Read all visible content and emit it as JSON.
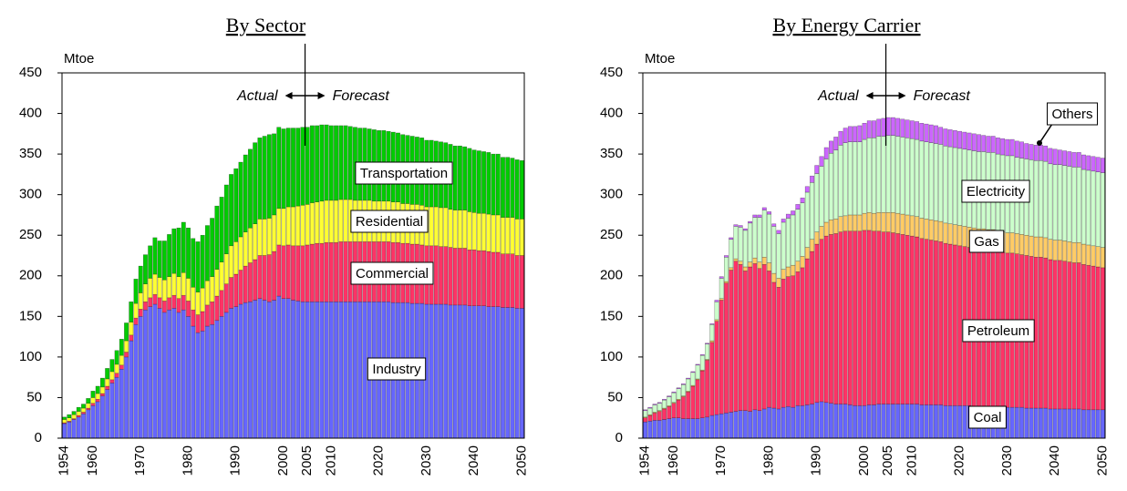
{
  "chart_data": [
    {
      "type": "stacked_bar",
      "title": "By Sector",
      "y_label": "Mtoe",
      "annotations": [
        "Actual",
        "Forecast"
      ],
      "categories": [
        "1954",
        null,
        null,
        null,
        null,
        null,
        "1960",
        null,
        null,
        null,
        null,
        null,
        null,
        null,
        null,
        null,
        "1970",
        null,
        null,
        null,
        null,
        null,
        null,
        null,
        null,
        null,
        "1980",
        null,
        null,
        null,
        null,
        null,
        null,
        null,
        null,
        null,
        "1990",
        null,
        null,
        null,
        null,
        null,
        null,
        null,
        null,
        null,
        "2000",
        null,
        null,
        null,
        null,
        "2005",
        null,
        null,
        null,
        null,
        "2010",
        null,
        null,
        null,
        null,
        null,
        null,
        null,
        null,
        null,
        "2020",
        null,
        null,
        null,
        null,
        null,
        null,
        null,
        null,
        null,
        "2030",
        null,
        null,
        null,
        null,
        null,
        null,
        null,
        null,
        null,
        "2040",
        null,
        null,
        null,
        null,
        null,
        null,
        null,
        null,
        null,
        "2050"
      ],
      "ylim": [
        0,
        450
      ],
      "yticks": [
        0,
        50,
        100,
        150,
        200,
        250,
        300,
        350,
        400,
        450
      ],
      "series": [
        {
          "name": "Industry",
          "color": "#6666ff",
          "values": [
            18,
            20,
            23,
            26,
            30,
            35,
            40,
            45,
            52,
            60,
            68,
            75,
            85,
            100,
            120,
            140,
            150,
            158,
            162,
            165,
            160,
            155,
            158,
            160,
            155,
            158,
            150,
            138,
            130,
            132,
            138,
            140,
            145,
            150,
            155,
            160,
            162,
            165,
            167,
            168,
            170,
            172,
            170,
            168,
            170,
            175,
            172,
            172,
            170,
            169,
            168,
            168,
            168,
            168,
            168,
            168,
            168,
            168,
            168,
            168,
            168,
            168,
            168,
            168,
            168,
            168,
            168,
            168,
            168,
            167,
            167,
            167,
            167,
            166,
            166,
            166,
            165,
            165,
            165,
            165,
            165,
            164,
            164,
            164,
            164,
            163,
            163,
            163,
            163,
            162,
            162,
            162,
            161,
            161,
            161,
            160,
            160
          ]
        },
        {
          "name": "Commercial",
          "color": "#ff3366",
          "values": [
            1,
            1,
            1,
            2,
            2,
            2,
            3,
            3,
            3,
            4,
            4,
            5,
            5,
            6,
            7,
            8,
            9,
            10,
            11,
            12,
            13,
            14,
            15,
            16,
            17,
            18,
            19,
            20,
            22,
            24,
            26,
            28,
            30,
            32,
            35,
            38,
            40,
            42,
            45,
            48,
            50,
            53,
            55,
            58,
            60,
            63,
            65,
            66,
            67,
            68,
            69,
            70,
            71,
            72,
            72,
            73,
            73,
            73,
            74,
            74,
            74,
            74,
            74,
            74,
            74,
            74,
            74,
            74,
            74,
            74,
            74,
            73,
            73,
            73,
            73,
            72,
            72,
            72,
            72,
            71,
            71,
            71,
            70,
            70,
            70,
            69,
            69,
            68,
            68,
            68,
            67,
            67,
            66,
            66,
            66,
            65,
            65
          ]
        },
        {
          "name": "Residential",
          "color": "#ffff33",
          "values": [
            4,
            4,
            5,
            5,
            5,
            6,
            7,
            7,
            8,
            9,
            10,
            11,
            12,
            14,
            16,
            18,
            20,
            22,
            24,
            25,
            25,
            26,
            26,
            27,
            27,
            28,
            28,
            28,
            28,
            29,
            30,
            31,
            33,
            35,
            37,
            39,
            40,
            41,
            42,
            43,
            44,
            45,
            45,
            45,
            45,
            45,
            46,
            47,
            48,
            49,
            50,
            50,
            51,
            51,
            52,
            52,
            52,
            52,
            52,
            52,
            52,
            51,
            51,
            51,
            51,
            50,
            50,
            50,
            50,
            50,
            50,
            49,
            49,
            49,
            49,
            49,
            48,
            48,
            48,
            48,
            48,
            47,
            47,
            47,
            47,
            47,
            46,
            46,
            46,
            46,
            46,
            46,
            45,
            45,
            45,
            45,
            45
          ]
        },
        {
          "name": "Transportation",
          "color": "#00cc00",
          "values": [
            3,
            4,
            4,
            5,
            5,
            6,
            8,
            9,
            11,
            13,
            15,
            17,
            20,
            22,
            25,
            30,
            33,
            36,
            40,
            45,
            45,
            48,
            52,
            55,
            60,
            62,
            62,
            60,
            62,
            65,
            68,
            72,
            78,
            80,
            85,
            88,
            90,
            92,
            95,
            97,
            100,
            100,
            102,
            103,
            100,
            100,
            98,
            97,
            97,
            96,
            96,
            95,
            95,
            94,
            94,
            93,
            92,
            92,
            91,
            91,
            90,
            90,
            89,
            89,
            88,
            88,
            87,
            87,
            86,
            86,
            85,
            85,
            84,
            84,
            83,
            83,
            82,
            82,
            81,
            81,
            80,
            80,
            79,
            79,
            78,
            78,
            77,
            77,
            76,
            76,
            75,
            75,
            74,
            74,
            73,
            73,
            72
          ]
        }
      ]
    },
    {
      "type": "stacked_bar",
      "title": "By Energy Carrier",
      "y_label": "Mtoe",
      "annotations": [
        "Actual",
        "Forecast"
      ],
      "categories": [
        "1954",
        null,
        null,
        null,
        null,
        null,
        "1960",
        null,
        null,
        null,
        null,
        null,
        null,
        null,
        null,
        null,
        "1970",
        null,
        null,
        null,
        null,
        null,
        null,
        null,
        null,
        null,
        "1980",
        null,
        null,
        null,
        null,
        null,
        null,
        null,
        null,
        null,
        "1990",
        null,
        null,
        null,
        null,
        null,
        null,
        null,
        null,
        null,
        "2000",
        null,
        null,
        null,
        null,
        "2005",
        null,
        null,
        null,
        null,
        "2010",
        null,
        null,
        null,
        null,
        null,
        null,
        null,
        null,
        null,
        "2020",
        null,
        null,
        null,
        null,
        null,
        null,
        null,
        null,
        null,
        "2030",
        null,
        null,
        null,
        null,
        null,
        null,
        null,
        null,
        null,
        "2040",
        null,
        null,
        null,
        null,
        null,
        null,
        null,
        null,
        null,
        "2050"
      ],
      "ylim": [
        0,
        450
      ],
      "yticks": [
        0,
        50,
        100,
        150,
        200,
        250,
        300,
        350,
        400,
        450
      ],
      "series": [
        {
          "name": "Coal",
          "color": "#6666ff",
          "values": [
            20,
            21,
            22,
            22,
            23,
            24,
            25,
            25,
            24,
            24,
            24,
            24,
            25,
            26,
            28,
            29,
            30,
            31,
            32,
            33,
            34,
            34,
            33,
            35,
            34,
            36,
            38,
            37,
            36,
            38,
            39,
            38,
            40,
            40,
            41,
            42,
            44,
            45,
            44,
            43,
            42,
            42,
            42,
            41,
            40,
            40,
            40,
            41,
            41,
            42,
            42,
            42,
            42,
            42,
            42,
            42,
            42,
            42,
            41,
            41,
            41,
            41,
            41,
            40,
            40,
            40,
            40,
            40,
            40,
            39,
            39,
            39,
            39,
            39,
            38,
            38,
            38,
            38,
            38,
            38,
            37,
            37,
            37,
            37,
            37,
            36,
            36,
            36,
            36,
            36,
            36,
            36,
            35,
            35,
            35,
            35,
            35
          ]
        },
        {
          "name": "Petroleum",
          "color": "#ff3366",
          "values": [
            5,
            7,
            9,
            11,
            13,
            15,
            18,
            22,
            27,
            33,
            40,
            48,
            58,
            70,
            90,
            115,
            140,
            160,
            175,
            185,
            180,
            172,
            178,
            180,
            175,
            178,
            168,
            155,
            150,
            158,
            160,
            162,
            165,
            170,
            180,
            188,
            195,
            200,
            205,
            208,
            210,
            212,
            213,
            214,
            215,
            215,
            216,
            215,
            214,
            213,
            212,
            212,
            211,
            210,
            209,
            208,
            207,
            206,
            205,
            204,
            203,
            202,
            201,
            200,
            199,
            198,
            197,
            196,
            195,
            195,
            194,
            194,
            193,
            193,
            192,
            191,
            190,
            190,
            189,
            188,
            188,
            187,
            186,
            186,
            185,
            184,
            183,
            183,
            182,
            181,
            180,
            180,
            179,
            178,
            177,
            176,
            175
          ]
        },
        {
          "name": "Gas",
          "color": "#ffcc66",
          "values": [
            1,
            1,
            1,
            1,
            1,
            1,
            1,
            1,
            1,
            1,
            1,
            1,
            1,
            1,
            2,
            2,
            2,
            2,
            3,
            3,
            4,
            5,
            6,
            7,
            8,
            9,
            10,
            11,
            11,
            12,
            12,
            13,
            13,
            14,
            14,
            15,
            15,
            16,
            17,
            18,
            18,
            19,
            19,
            20,
            20,
            20,
            21,
            22,
            22,
            23,
            24,
            24,
            25,
            25,
            25,
            25,
            25,
            25,
            25,
            25,
            25,
            25,
            25,
            25,
            25,
            25,
            25,
            25,
            25,
            25,
            25,
            25,
            25,
            25,
            25,
            25,
            25,
            25,
            25,
            25,
            25,
            25,
            25,
            25,
            25,
            25,
            25,
            25,
            25,
            25,
            25,
            25,
            25,
            25,
            25,
            25,
            25
          ]
        },
        {
          "name": "Electricity",
          "color": "#ccffcc",
          "values": [
            8,
            8,
            9,
            9,
            10,
            11,
            12,
            13,
            14,
            15,
            16,
            17,
            18,
            19,
            20,
            22,
            25,
            30,
            35,
            40,
            42,
            45,
            48,
            50,
            55,
            58,
            60,
            58,
            55,
            58,
            60,
            62,
            64,
            66,
            68,
            70,
            72,
            74,
            78,
            82,
            85,
            88,
            90,
            90,
            90,
            90,
            91,
            92,
            93,
            94,
            94,
            95,
            95,
            95,
            95,
            95,
            95,
            95,
            95,
            95,
            95,
            95,
            95,
            95,
            95,
            95,
            95,
            95,
            95,
            95,
            95,
            95,
            95,
            95,
            95,
            95,
            95,
            95,
            94,
            94,
            94,
            94,
            94,
            94,
            94,
            93,
            93,
            93,
            93,
            93,
            93,
            93,
            92,
            92,
            92,
            92,
            92
          ]
        },
        {
          "name": "Others",
          "color": "#cc66ff",
          "values": [
            1,
            1,
            1,
            1,
            1,
            1,
            1,
            1,
            1,
            1,
            1,
            1,
            1,
            1,
            1,
            2,
            2,
            2,
            2,
            2,
            2,
            2,
            2,
            3,
            3,
            3,
            3,
            3,
            4,
            4,
            5,
            5,
            6,
            6,
            7,
            8,
            10,
            12,
            14,
            15,
            16,
            17,
            18,
            19,
            19,
            20,
            20,
            21,
            21,
            21,
            22,
            22,
            22,
            22,
            22,
            22,
            22,
            22,
            22,
            22,
            22,
            22,
            21,
            21,
            21,
            21,
            21,
            21,
            21,
            21,
            21,
            20,
            20,
            20,
            20,
            20,
            20,
            20,
            20,
            20,
            19,
            19,
            19,
            19,
            19,
            19,
            19,
            18,
            18,
            18,
            18,
            18,
            18,
            18,
            18,
            18,
            18
          ]
        }
      ]
    }
  ]
}
